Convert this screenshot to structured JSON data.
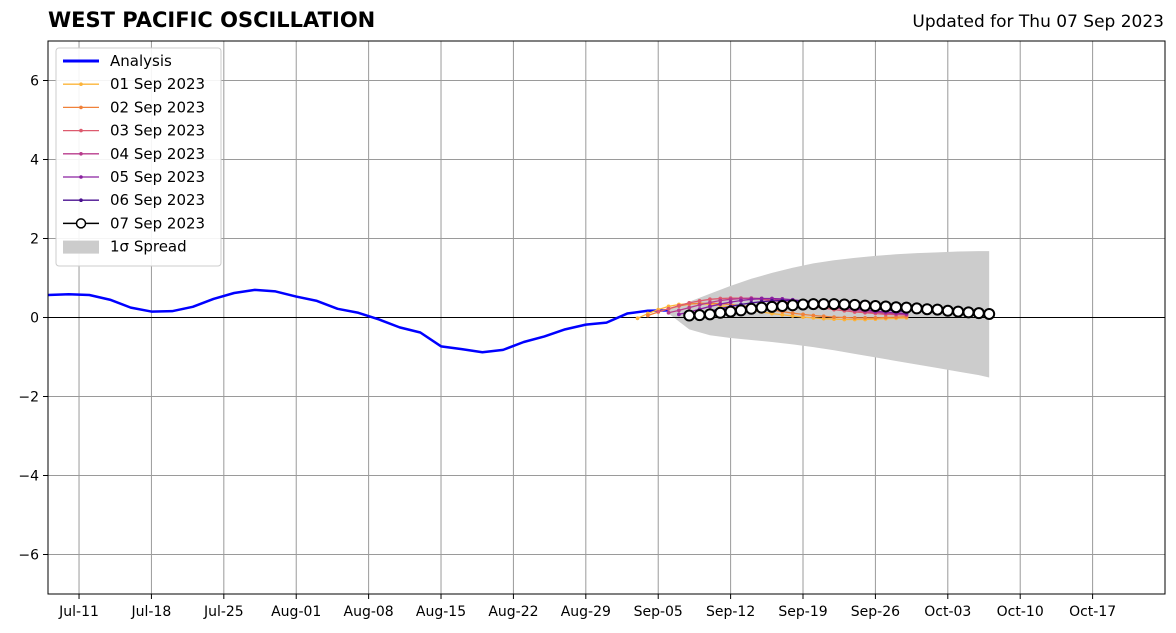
{
  "chart_data": {
    "type": "line",
    "title": "WEST PACIFIC OSCILLATION",
    "subtitle": "Updated for Thu 07 Sep 2023",
    "xlabel": "",
    "ylabel": "",
    "ylim": [
      -7,
      7
    ],
    "xlim": [
      "2023-07-08",
      "2023-10-24"
    ],
    "x_tick_labels": [
      "Jul-11",
      "Jul-18",
      "Jul-25",
      "Aug-01",
      "Aug-08",
      "Aug-15",
      "Aug-22",
      "Aug-29",
      "Sep-05",
      "Sep-12",
      "Sep-19",
      "Sep-26",
      "Oct-03",
      "Oct-10",
      "Oct-17"
    ],
    "x_ticks": [
      "2023-07-11",
      "2023-07-18",
      "2023-07-25",
      "2023-08-01",
      "2023-08-08",
      "2023-08-15",
      "2023-08-22",
      "2023-08-29",
      "2023-09-05",
      "2023-09-12",
      "2023-09-19",
      "2023-09-26",
      "2023-10-03",
      "2023-10-10",
      "2023-10-17"
    ],
    "y_ticks": [
      6,
      4,
      2,
      0,
      -2,
      -4,
      -6
    ],
    "y_tick_labels": [
      "6",
      "4",
      "2",
      "0",
      "−2",
      "−4",
      "−6"
    ],
    "grid": true,
    "legend_position": "top-left",
    "analysis": {
      "name": "Analysis",
      "color": "#0000ff",
      "x": [
        "2023-07-08",
        "2023-07-10",
        "2023-07-12",
        "2023-07-14",
        "2023-07-16",
        "2023-07-18",
        "2023-07-20",
        "2023-07-22",
        "2023-07-24",
        "2023-07-26",
        "2023-07-28",
        "2023-07-30",
        "2023-08-01",
        "2023-08-03",
        "2023-08-05",
        "2023-08-07",
        "2023-08-09",
        "2023-08-11",
        "2023-08-13",
        "2023-08-15",
        "2023-08-17",
        "2023-08-19",
        "2023-08-21",
        "2023-08-23",
        "2023-08-25",
        "2023-08-27",
        "2023-08-29",
        "2023-08-31",
        "2023-09-02",
        "2023-09-04",
        "2023-09-06"
      ],
      "y": [
        0.57,
        0.59,
        0.57,
        0.45,
        0.25,
        0.15,
        0.16,
        0.27,
        0.47,
        0.62,
        0.7,
        0.66,
        0.53,
        0.42,
        0.22,
        0.12,
        -0.05,
        -0.25,
        -0.38,
        -0.73,
        -0.8,
        -0.88,
        -0.82,
        -0.62,
        -0.48,
        -0.3,
        -0.18,
        -0.13,
        0.1,
        0.17,
        0.18
      ]
    },
    "forecasts": [
      {
        "name": "01 Sep 2023",
        "color": "#fcb43a",
        "start": "2023-09-03",
        "y": [
          -0.02,
          0.1,
          0.2,
          0.28,
          0.33,
          0.35,
          0.35,
          0.33,
          0.3,
          0.26,
          0.22,
          0.18,
          0.14,
          0.1,
          0.07,
          0.04,
          0.01,
          -0.01,
          -0.03,
          -0.04,
          -0.05,
          -0.05,
          -0.05,
          -0.04,
          -0.03,
          -0.02,
          -0.01
        ]
      },
      {
        "name": "02 Sep 2023",
        "color": "#f0813a",
        "start": "2023-09-04",
        "y": [
          0.05,
          0.14,
          0.22,
          0.29,
          0.34,
          0.36,
          0.36,
          0.35,
          0.33,
          0.3,
          0.27,
          0.23,
          0.19,
          0.15,
          0.11,
          0.08,
          0.05,
          0.03,
          0.01,
          0.0,
          -0.01,
          -0.01,
          -0.01,
          0.0,
          0.01,
          0.02
        ]
      },
      {
        "name": "03 Sep 2023",
        "color": "#dd5a6e",
        "start": "2023-09-05",
        "y": [
          0.15,
          0.22,
          0.3,
          0.37,
          0.42,
          0.46,
          0.48,
          0.49,
          0.49,
          0.48,
          0.46,
          0.43,
          0.4,
          0.36,
          0.32,
          0.28,
          0.24,
          0.2,
          0.17,
          0.14,
          0.12,
          0.1,
          0.08,
          0.07,
          0.06
        ]
      },
      {
        "name": "04 Sep 2023",
        "color": "#b83b8c",
        "start": "2023-09-06",
        "y": [
          0.12,
          0.18,
          0.25,
          0.32,
          0.38,
          0.43,
          0.46,
          0.48,
          0.49,
          0.48,
          0.47,
          0.44,
          0.41,
          0.37,
          0.33,
          0.29,
          0.25,
          0.21,
          0.18,
          0.15,
          0.13,
          0.11,
          0.09,
          0.08
        ]
      },
      {
        "name": "05 Sep 2023",
        "color": "#8a20a0",
        "start": "2023-09-07",
        "y": [
          0.08,
          0.14,
          0.21,
          0.28,
          0.34,
          0.39,
          0.43,
          0.46,
          0.48,
          0.48,
          0.47,
          0.45,
          0.42,
          0.38,
          0.34,
          0.3,
          0.26,
          0.22,
          0.19,
          0.16,
          0.14,
          0.12,
          0.1
        ]
      },
      {
        "name": "06 Sep 2023",
        "color": "#4a1090",
        "start": "2023-09-08",
        "y": [
          0.05,
          0.1,
          0.16,
          0.22,
          0.28,
          0.33,
          0.37,
          0.4,
          0.42,
          0.43,
          0.43,
          0.42,
          0.4,
          0.37,
          0.34,
          0.31,
          0.28,
          0.25,
          0.22,
          0.19,
          0.17,
          0.15
        ]
      },
      {
        "name": "07 Sep 2023",
        "color": "#000000",
        "start": "2023-09-08",
        "marker": "open-circle",
        "y": [
          0.05,
          0.06,
          0.08,
          0.12,
          0.15,
          0.18,
          0.22,
          0.25,
          0.27,
          0.29,
          0.31,
          0.33,
          0.34,
          0.34,
          0.34,
          0.33,
          0.32,
          0.3,
          0.29,
          0.28,
          0.26,
          0.25,
          0.23,
          0.21,
          0.2,
          0.17,
          0.15,
          0.13,
          0.11,
          0.09
        ]
      }
    ],
    "spread": {
      "name": "1σ Spread",
      "color": "#cccccc",
      "x": [
        "2023-09-06",
        "2023-09-08",
        "2023-09-10",
        "2023-09-12",
        "2023-09-14",
        "2023-09-16",
        "2023-09-18",
        "2023-09-20",
        "2023-09-22",
        "2023-09-24",
        "2023-09-26",
        "2023-09-28",
        "2023-09-30",
        "2023-10-02",
        "2023-10-04",
        "2023-10-06",
        "2023-10-07"
      ],
      "upper": [
        0.2,
        0.4,
        0.6,
        0.8,
        0.98,
        1.13,
        1.26,
        1.37,
        1.45,
        1.51,
        1.56,
        1.6,
        1.63,
        1.65,
        1.67,
        1.68,
        1.68
      ],
      "lower": [
        0.1,
        -0.3,
        -0.45,
        -0.52,
        -0.57,
        -0.62,
        -0.68,
        -0.75,
        -0.83,
        -0.92,
        -1.01,
        -1.1,
        -1.19,
        -1.28,
        -1.37,
        -1.46,
        -1.52
      ]
    }
  },
  "legend": {
    "items": [
      {
        "label": "Analysis",
        "color": "#0000ff",
        "style": "thick-line"
      },
      {
        "label": "01 Sep 2023",
        "color": "#fcb43a",
        "style": "line-dot"
      },
      {
        "label": "02 Sep 2023",
        "color": "#f0813a",
        "style": "line-dot"
      },
      {
        "label": "03 Sep 2023",
        "color": "#dd5a6e",
        "style": "line-dot"
      },
      {
        "label": "04 Sep 2023",
        "color": "#b83b8c",
        "style": "line-dot"
      },
      {
        "label": "05 Sep 2023",
        "color": "#8a20a0",
        "style": "line-dot"
      },
      {
        "label": "06 Sep 2023",
        "color": "#4a1090",
        "style": "line-dot"
      },
      {
        "label": "07 Sep 2023",
        "color": "#000000",
        "style": "line-circle"
      },
      {
        "label": "1σ Spread",
        "color": "#cccccc",
        "style": "patch"
      }
    ]
  }
}
